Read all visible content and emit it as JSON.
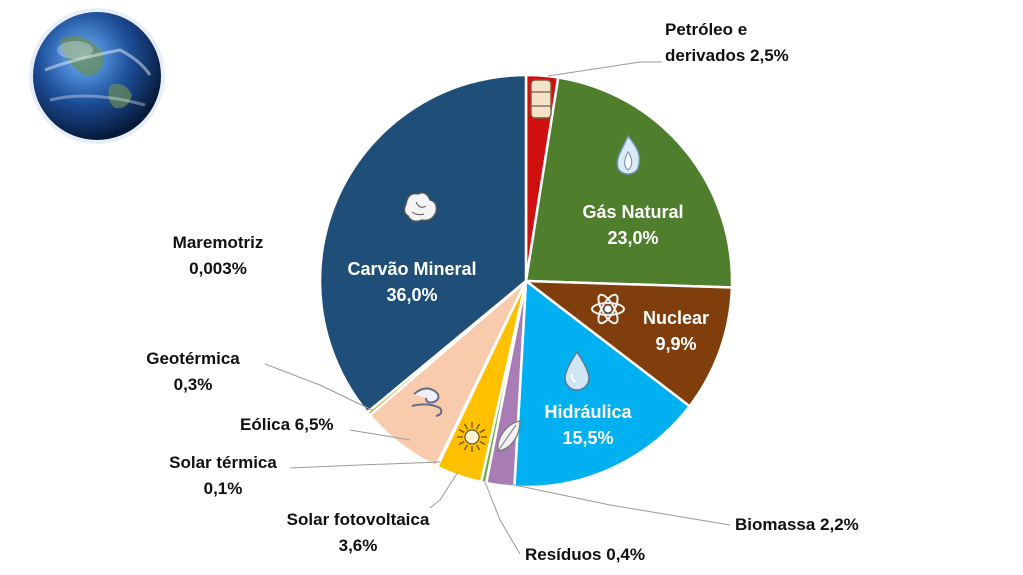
{
  "chart_data": {
    "type": "pie",
    "title": "",
    "slices": [
      {
        "key": "petroleo",
        "label": "Petróleo e derivados",
        "label_lines": [
          "Petróleo e",
          "derivados 2,5%"
        ],
        "value": 2.5,
        "color": "#d01010",
        "inner": false
      },
      {
        "key": "gas",
        "label": "Gás Natural",
        "label_lines": [
          "Gás Natural",
          "23,0%"
        ],
        "value": 23.0,
        "color": "#4f7f2c",
        "inner": true,
        "icon": "flame-icon"
      },
      {
        "key": "nuclear",
        "label": "Nuclear",
        "label_lines": [
          "Nuclear",
          "9,9%"
        ],
        "value": 9.9,
        "color": "#7f3e0c",
        "inner": true,
        "icon": "atom-icon"
      },
      {
        "key": "hidraulica",
        "label": "Hidráulica",
        "label_lines": [
          "Hidráulica",
          "15,5%"
        ],
        "value": 15.5,
        "color": "#00b0f0",
        "inner": true,
        "icon": "water-drop-icon"
      },
      {
        "key": "biomassa",
        "label": "Biomassa",
        "label_lines": [
          "Biomassa 2,2%"
        ],
        "value": 2.2,
        "color": "#a87cb4",
        "inner": false,
        "icon": "leaf-icon"
      },
      {
        "key": "residuos",
        "label": "Resíduos",
        "label_lines": [
          "Resíduos 0,4%"
        ],
        "value": 0.4,
        "color": "#70ad47",
        "inner": false
      },
      {
        "key": "solar_foto",
        "label": "Solar fotovoltaica",
        "label_lines": [
          "Solar fotovoltaica",
          "3,6%"
        ],
        "value": 3.6,
        "color": "#ffc000",
        "inner": false,
        "icon": "sun-icon"
      },
      {
        "key": "solar_term",
        "label": "Solar térmica",
        "label_lines": [
          "Solar térmica",
          "0,1%"
        ],
        "value": 0.1,
        "color": "#e07020",
        "inner": false
      },
      {
        "key": "eolica",
        "label": "Eólica",
        "label_lines": [
          "Eólica 6,5%"
        ],
        "value": 6.5,
        "color": "#f8cbad",
        "inner": false,
        "icon": "wind-icon"
      },
      {
        "key": "geotermica",
        "label": "Geotérmica",
        "label_lines": [
          "Geotérmica",
          "0,3%"
        ],
        "value": 0.3,
        "color": "#c9a227",
        "inner": false
      },
      {
        "key": "maremotriz",
        "label": "Maremotriz",
        "label_lines": [
          "Maremotriz",
          "0,003%"
        ],
        "value": 0.003,
        "color": "#2e75b6",
        "inner": false
      },
      {
        "key": "carvao",
        "label": "Carvão Mineral",
        "label_lines": [
          "Carvão Mineral",
          "36,0%"
        ],
        "value": 36.0,
        "color": "#1f4e79",
        "inner": true,
        "icon": "coal-icon"
      }
    ],
    "legend": "none",
    "decoration": "globe-icon"
  }
}
